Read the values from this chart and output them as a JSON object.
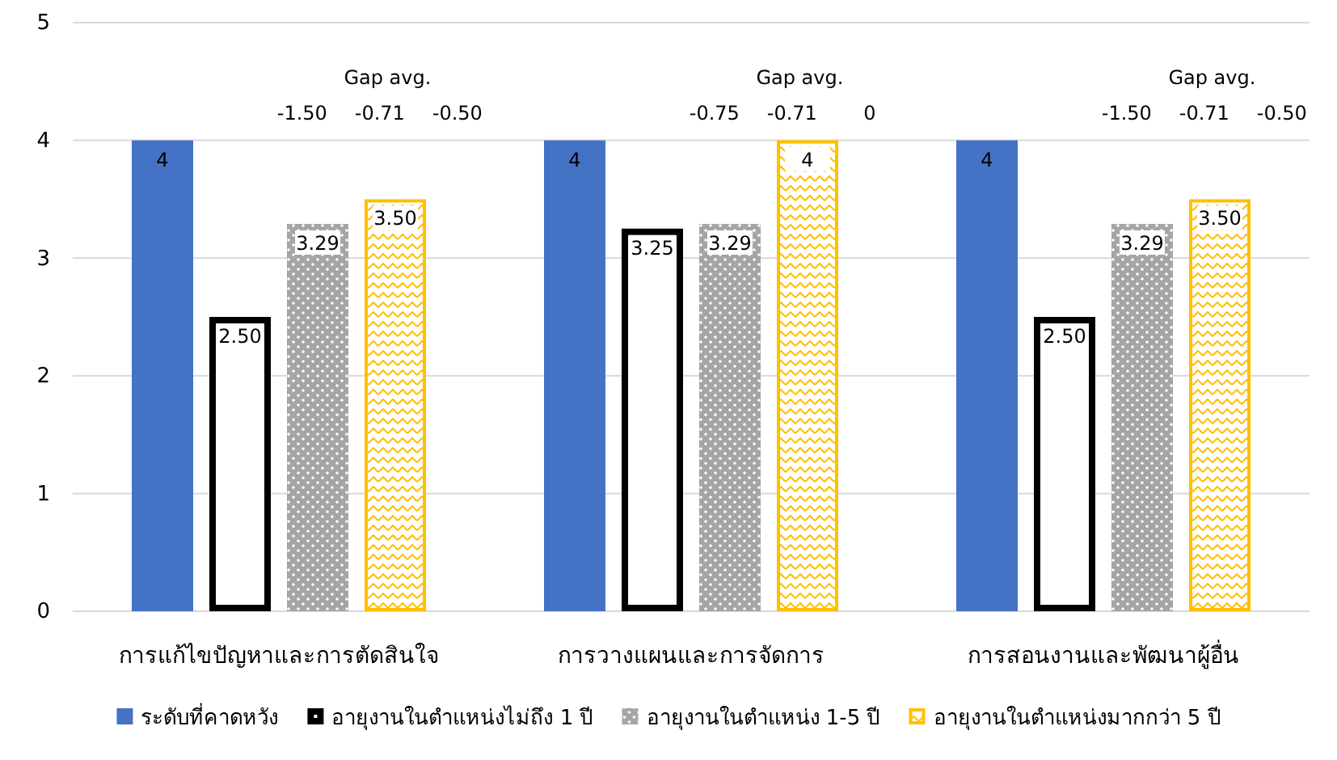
{
  "chart_data": {
    "type": "bar",
    "categories": [
      "การแก้ไขปัญหาและการตัดสินใจ",
      "การวางแผนและการจัดการ",
      "การสอนงานและพัฒนาผู้อื่น"
    ],
    "series": [
      {
        "name": "ระดับที่คาดหวัง",
        "color": "#4472c4",
        "values": [
          4,
          4,
          4
        ],
        "value_labels": [
          "4",
          "4",
          "4"
        ]
      },
      {
        "name": "อายุงานในตำแหน่งไม่ถึง 1 ปี",
        "color": "#000000",
        "values": [
          2.5,
          3.25,
          2.5
        ],
        "value_labels": [
          "2.50",
          "3.25",
          "2.50"
        ]
      },
      {
        "name": "อายุงานในตำแหน่ง 1-5 ปี",
        "color": "#a5a5a5",
        "values": [
          3.29,
          3.29,
          3.29
        ],
        "value_labels": [
          "3.29",
          "3.29",
          "3.29"
        ]
      },
      {
        "name": "อายุงานในตำแหน่งมากกว่า 5 ปี",
        "color": "#ffc000",
        "values": [
          3.5,
          4,
          3.5
        ],
        "value_labels": [
          "3.50",
          "4",
          "3.50"
        ]
      }
    ],
    "ylim": [
      0,
      5
    ],
    "yticks": [
      0,
      1,
      2,
      3,
      4,
      5
    ],
    "grid": "y",
    "legend": "bottom",
    "annotations": [
      "Gap avg.",
      "-1.50",
      "-0.71",
      "-0.50",
      "Gap avg.",
      "-0.75",
      "-0.71",
      "0",
      "Gap avg.",
      "-1.50",
      "-0.71",
      "-0.50"
    ]
  }
}
